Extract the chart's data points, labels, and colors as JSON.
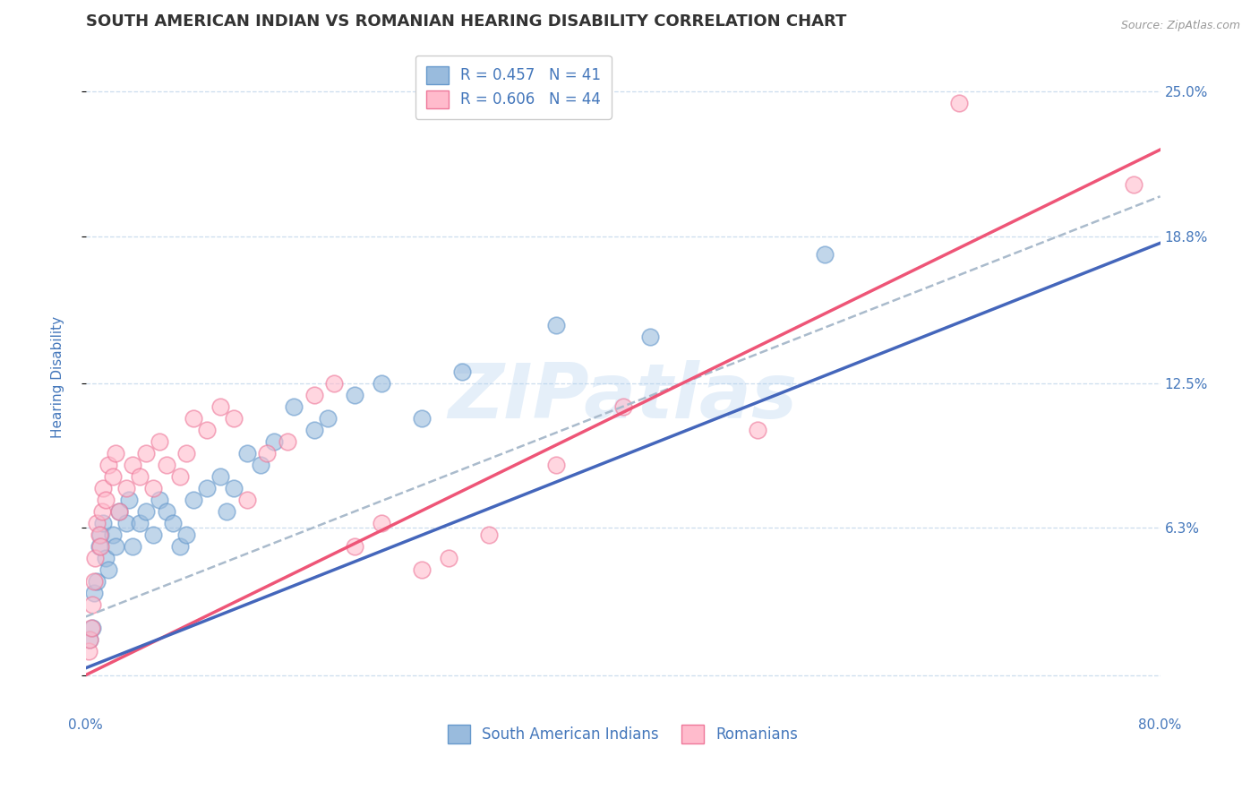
{
  "title": "SOUTH AMERICAN INDIAN VS ROMANIAN HEARING DISABILITY CORRELATION CHART",
  "source_text": "Source: ZipAtlas.com",
  "ylabel": "Hearing Disability",
  "xlim": [
    0.0,
    80.0
  ],
  "ylim": [
    -1.5,
    27.0
  ],
  "yticks": [
    0.0,
    6.3,
    12.5,
    18.8,
    25.0
  ],
  "ytick_labels": [
    "",
    "6.3%",
    "12.5%",
    "18.8%",
    "25.0%"
  ],
  "xtick_labels": [
    "0.0%",
    "80.0%"
  ],
  "blue_R": 0.457,
  "blue_N": 41,
  "pink_R": 0.606,
  "pink_N": 44,
  "blue_line_color": "#4466BB",
  "pink_line_color": "#EE5577",
  "dashed_line_color": "#AABBCC",
  "blue_dot_color": "#99BBDD",
  "blue_dot_edge": "#6699CC",
  "pink_dot_color": "#FFBBCC",
  "pink_dot_edge": "#EE7799",
  "grid_color": "#CCDDEE",
  "background_color": "#FFFFFF",
  "title_color": "#333333",
  "label_color": "#4477BB",
  "watermark_text": "ZIPatlas",
  "legend_blue_label": "South American Indians",
  "legend_pink_label": "Romanians",
  "title_fontsize": 13,
  "axis_label_fontsize": 11,
  "tick_fontsize": 11,
  "legend_fontsize": 12,
  "blue_line_x0": 0.0,
  "blue_line_y0": 0.3,
  "blue_line_x1": 80.0,
  "blue_line_y1": 18.5,
  "pink_line_x0": 0.0,
  "pink_line_y0": 0.0,
  "pink_line_x1": 80.0,
  "pink_line_y1": 22.5,
  "dash_line_x0": 0.0,
  "dash_line_y0": 2.5,
  "dash_line_x1": 80.0,
  "dash_line_y1": 20.5,
  "blue_scatter_x": [
    0.3,
    0.5,
    0.6,
    0.8,
    1.0,
    1.1,
    1.3,
    1.5,
    1.7,
    2.0,
    2.2,
    2.5,
    3.0,
    3.2,
    3.5,
    4.0,
    4.5,
    5.0,
    5.5,
    6.0,
    6.5,
    7.0,
    7.5,
    8.0,
    9.0,
    10.0,
    10.5,
    11.0,
    12.0,
    13.0,
    14.0,
    15.5,
    17.0,
    18.0,
    20.0,
    22.0,
    25.0,
    28.0,
    35.0,
    42.0,
    55.0
  ],
  "blue_scatter_y": [
    1.5,
    2.0,
    3.5,
    4.0,
    5.5,
    6.0,
    6.5,
    5.0,
    4.5,
    6.0,
    5.5,
    7.0,
    6.5,
    7.5,
    5.5,
    6.5,
    7.0,
    6.0,
    7.5,
    7.0,
    6.5,
    5.5,
    6.0,
    7.5,
    8.0,
    8.5,
    7.0,
    8.0,
    9.5,
    9.0,
    10.0,
    11.5,
    10.5,
    11.0,
    12.0,
    12.5,
    11.0,
    13.0,
    15.0,
    14.5,
    18.0
  ],
  "pink_scatter_x": [
    0.2,
    0.3,
    0.4,
    0.5,
    0.6,
    0.7,
    0.8,
    1.0,
    1.1,
    1.2,
    1.3,
    1.5,
    1.7,
    2.0,
    2.2,
    2.5,
    3.0,
    3.5,
    4.0,
    4.5,
    5.0,
    5.5,
    6.0,
    7.0,
    7.5,
    8.0,
    9.0,
    10.0,
    11.0,
    12.0,
    13.5,
    15.0,
    17.0,
    18.5,
    20.0,
    22.0,
    25.0,
    27.0,
    30.0,
    35.0,
    40.0,
    50.0,
    65.0,
    78.0
  ],
  "pink_scatter_y": [
    1.0,
    1.5,
    2.0,
    3.0,
    4.0,
    5.0,
    6.5,
    6.0,
    5.5,
    7.0,
    8.0,
    7.5,
    9.0,
    8.5,
    9.5,
    7.0,
    8.0,
    9.0,
    8.5,
    9.5,
    8.0,
    10.0,
    9.0,
    8.5,
    9.5,
    11.0,
    10.5,
    11.5,
    11.0,
    7.5,
    9.5,
    10.0,
    12.0,
    12.5,
    5.5,
    6.5,
    4.5,
    5.0,
    6.0,
    9.0,
    11.5,
    10.5,
    24.5,
    21.0
  ]
}
